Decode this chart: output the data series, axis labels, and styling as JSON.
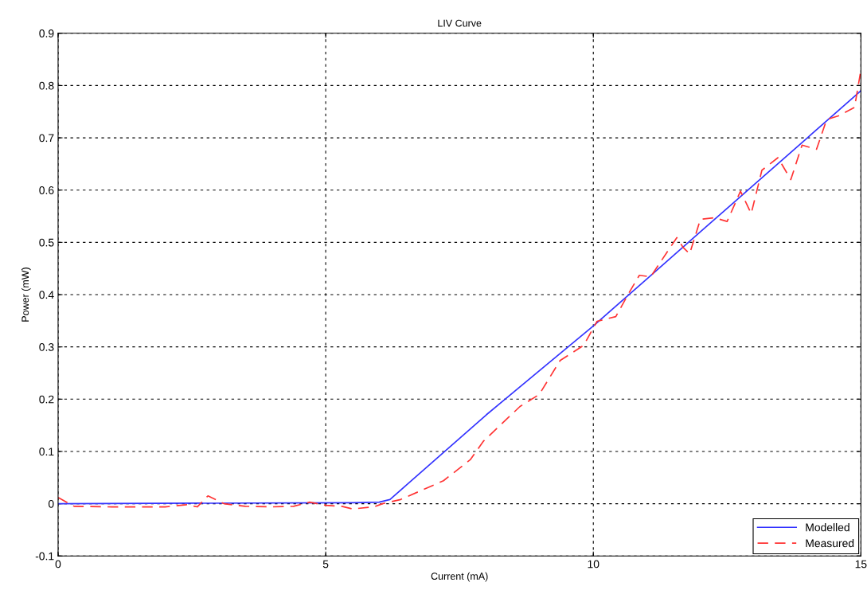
{
  "chart_data": {
    "type": "line",
    "title": "LIV Curve",
    "xlabel": "Current (mA)",
    "ylabel": "Power (mW)",
    "xlim": [
      0,
      15
    ],
    "xticks": [
      0,
      5,
      10,
      15
    ],
    "ylim": [
      -0.1,
      0.9
    ],
    "yticks": [
      -0.1,
      0,
      0.1,
      0.2,
      0.3,
      0.4,
      0.5,
      0.6,
      0.7,
      0.8,
      0.9
    ],
    "grid": true,
    "legend": "bottom right",
    "marker": "none",
    "series": [
      {
        "name": "Modelled",
        "color": "#3333ff",
        "line_style": "solid",
        "x": [
          0,
          5.5,
          6.0,
          6.2,
          6.5,
          7.0,
          8.0,
          9.0,
          10.0,
          11.0,
          12.0,
          13.0,
          14.0,
          15.0
        ],
        "values": [
          0,
          0.002,
          0.003,
          0.008,
          0.035,
          0.08,
          0.17,
          0.255,
          0.34,
          0.43,
          0.52,
          0.61,
          0.7,
          0.79
        ]
      },
      {
        "name": "Measured",
        "color": "#ff3333",
        "line_style": "dashed",
        "x": [
          0,
          0.3,
          1,
          1.5,
          2,
          2.4,
          2.6,
          2.8,
          3.1,
          3.5,
          4,
          4.4,
          4.7,
          5,
          5.3,
          5.5,
          5.9,
          6.06,
          6.4,
          7.2,
          7.7,
          7.95,
          8.63,
          8.99,
          9.38,
          9.82,
          10.07,
          10.42,
          10.67,
          10.86,
          11.07,
          11.37,
          11.56,
          11.68,
          11.8,
          12.0,
          12.26,
          12.5,
          12.75,
          12.95,
          13.15,
          13.45,
          13.69,
          13.9,
          14.17,
          14.36,
          14.58,
          14.88,
          15.0
        ],
        "values": [
          0.012,
          -0.005,
          -0.006,
          -0.006,
          -0.006,
          -0.002,
          -0.006,
          0.015,
          0.0,
          -0.005,
          -0.006,
          -0.005,
          0.003,
          -0.003,
          -0.005,
          -0.01,
          -0.006,
          0.0,
          0.008,
          0.044,
          0.084,
          0.12,
          0.186,
          0.209,
          0.274,
          0.303,
          0.349,
          0.358,
          0.404,
          0.437,
          0.434,
          0.48,
          0.509,
          0.49,
          0.478,
          0.544,
          0.547,
          0.54,
          0.598,
          0.555,
          0.638,
          0.662,
          0.62,
          0.686,
          0.678,
          0.735,
          0.742,
          0.758,
          0.83
        ]
      }
    ]
  }
}
